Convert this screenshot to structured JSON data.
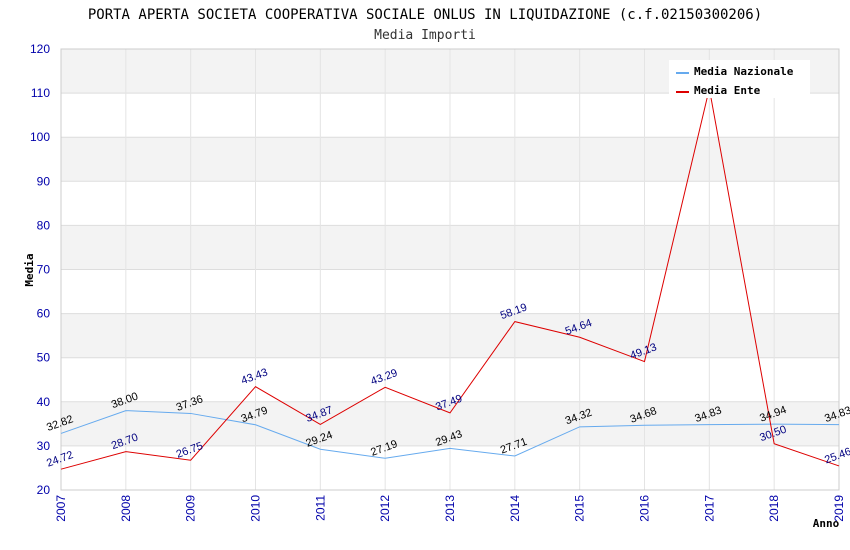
{
  "chart_data": {
    "type": "line",
    "title": "PORTA APERTA SOCIETA COOPERATIVA SOCIALE ONLUS IN LIQUIDAZIONE (c.f.02150300206)",
    "subtitle": "Media Importi",
    "xlabel": "Anno",
    "ylabel": "Media",
    "ylim": [
      20,
      120
    ],
    "yticks": [
      20,
      30,
      40,
      50,
      60,
      70,
      80,
      90,
      100,
      110,
      120
    ],
    "categories": [
      "2007",
      "2008",
      "2009",
      "2010",
      "2011",
      "2012",
      "2013",
      "2014",
      "2015",
      "2016",
      "2017",
      "2018",
      "2019"
    ],
    "legend_position": "top-right",
    "series": [
      {
        "name": "Media Nazionale",
        "color": "#66aaee",
        "values": [
          32.82,
          38.0,
          37.36,
          34.79,
          29.24,
          27.19,
          29.43,
          27.71,
          34.32,
          34.68,
          34.83,
          34.94,
          34.83
        ],
        "labels": [
          "32.82",
          "38.00",
          "37.36",
          "34.79",
          "29.24",
          "27.19",
          "29.43",
          "27.71",
          "34.32",
          "34.68",
          "34.83",
          "34.94",
          "34.83"
        ]
      },
      {
        "name": "Media Ente",
        "color": "#dd0000",
        "values": [
          24.72,
          28.7,
          26.75,
          43.43,
          34.87,
          43.29,
          37.49,
          58.19,
          54.64,
          49.13,
          111.0,
          30.5,
          25.46
        ],
        "labels": [
          "24.72",
          "28.70",
          "26.75",
          "43.43",
          "34.87",
          "43.29",
          "37.49",
          "58.19",
          "54.64",
          "49.13",
          "",
          "30.50",
          "25.46"
        ]
      }
    ]
  }
}
